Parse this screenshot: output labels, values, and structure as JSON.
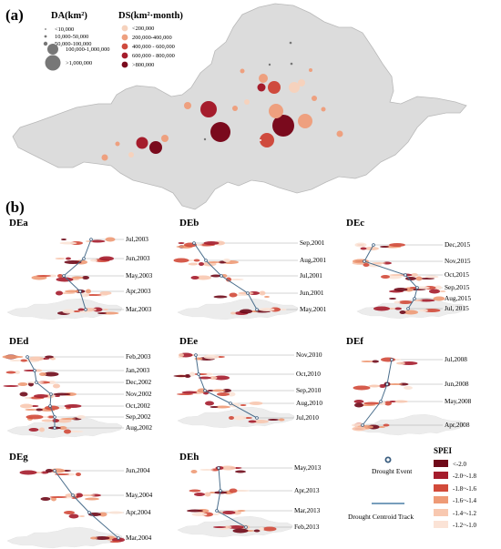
{
  "panel_a": {
    "label": "(a)",
    "da_legend": {
      "title": "DA(km²)",
      "items": [
        {
          "label": "<10,000"
        },
        {
          "label": "10,000-50,000"
        },
        {
          "label": "50,000-100,000"
        },
        {
          "label": "100,000-1,000,000"
        },
        {
          "label": ">1,000,000"
        }
      ]
    },
    "ds_legend": {
      "title": "DS(km²·month)",
      "items": [
        {
          "label": "<200,000",
          "color": "#f6d2bd"
        },
        {
          "label": "200,000-400,000",
          "color": "#eea07f"
        },
        {
          "label": "400,000 - 600,000",
          "color": "#cf4a3d"
        },
        {
          "label": "600,000 - 800,000",
          "color": "#a51c2c"
        },
        {
          "label": ">800,000",
          "color": "#7a0a1d"
        }
      ]
    }
  },
  "panel_b": {
    "label": "(b)",
    "events": [
      {
        "id": "DEa",
        "dates": [
          "Jul,2003",
          "Jun,2003",
          "May,2003",
          "Apr,2003",
          "Mar,2003"
        ]
      },
      {
        "id": "DEb",
        "dates": [
          "Sep,2001",
          "Aug,2001",
          "Jul,2001",
          "Jun,2001",
          "May,2001"
        ]
      },
      {
        "id": "DEc",
        "dates": [
          "Dec,2015",
          "Nov,2015",
          "Oct,2015",
          "Sep,2015",
          "Aug,2015",
          "Jul, 2015"
        ]
      },
      {
        "id": "DEd",
        "dates": [
          "Feb,2003",
          "Jan,2003",
          "Dec,2002",
          "Nov,2002",
          "Oct,2002",
          "Sep,2002",
          "Aug,2002"
        ]
      },
      {
        "id": "DEe",
        "dates": [
          "Nov,2010",
          "Oct,2010",
          "Sep,2010",
          "Aug,2010",
          "Jul,2010"
        ]
      },
      {
        "id": "DEf",
        "dates": [
          "Jul,2008",
          "Jun,2008",
          "May,2008",
          "Apr,2008"
        ]
      },
      {
        "id": "DEg",
        "dates": [
          "Jun,2004",
          "May,2004",
          "Apr,2004",
          "Mar,2004"
        ]
      },
      {
        "id": "DEh",
        "dates": [
          "May,2013",
          "Apr,2013",
          "Mar,2013",
          "Feb,2013"
        ]
      }
    ],
    "legend": {
      "drought_event": "Drought Event",
      "centroid_track": "Drought Centroid Track",
      "spei_title": "SPEI",
      "spei_items": [
        {
          "label": "<-2.0",
          "color": "#6f0a19"
        },
        {
          "label": "-2.0~-1.8",
          "color": "#a51c2c"
        },
        {
          "label": "-1.8~-1.6",
          "color": "#d24a3a"
        },
        {
          "label": "-1.6~-1.4",
          "color": "#ee9a76"
        },
        {
          "label": "-1.4~-1.2",
          "color": "#f8c8b0"
        },
        {
          "label": "-1.2~-1.0",
          "color": "#fbe3d6"
        }
      ]
    }
  },
  "colors": {
    "basin_fill": "#dcdcdc",
    "basin_stroke": "#b9b9b9",
    "track": "#4a6e8c",
    "leader": "#9a9a9a"
  }
}
